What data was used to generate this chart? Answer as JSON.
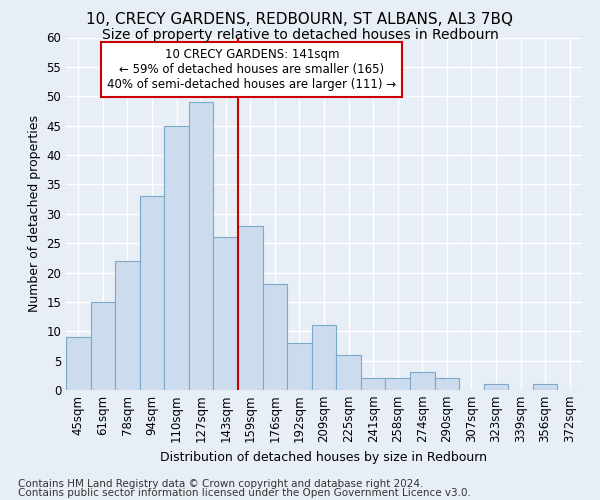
{
  "title": "10, CRECY GARDENS, REDBOURN, ST ALBANS, AL3 7BQ",
  "subtitle": "Size of property relative to detached houses in Redbourn",
  "xlabel": "Distribution of detached houses by size in Redbourn",
  "ylabel": "Number of detached properties",
  "bar_labels": [
    "45sqm",
    "61sqm",
    "78sqm",
    "94sqm",
    "110sqm",
    "127sqm",
    "143sqm",
    "159sqm",
    "176sqm",
    "192sqm",
    "209sqm",
    "225sqm",
    "241sqm",
    "258sqm",
    "274sqm",
    "290sqm",
    "307sqm",
    "323sqm",
    "339sqm",
    "356sqm",
    "372sqm"
  ],
  "bar_values": [
    9,
    15,
    22,
    33,
    45,
    49,
    26,
    28,
    18,
    8,
    11,
    6,
    2,
    2,
    3,
    2,
    0,
    1,
    0,
    1,
    0
  ],
  "bar_color": "#ccdcee",
  "bar_edge_color": "#7aaac8",
  "highlight_index": 6,
  "vline_color": "#cc0000",
  "ylim": [
    0,
    60
  ],
  "yticks": [
    0,
    5,
    10,
    15,
    20,
    25,
    30,
    35,
    40,
    45,
    50,
    55,
    60
  ],
  "background_color": "#e8eef6",
  "plot_bg_color": "#e8eef6",
  "annotation_text": "10 CRECY GARDENS: 141sqm\n← 59% of detached houses are smaller (165)\n40% of semi-detached houses are larger (111) →",
  "annotation_box_color": "white",
  "annotation_box_edge": "#cc0000",
  "footer_line1": "Contains HM Land Registry data © Crown copyright and database right 2024.",
  "footer_line2": "Contains public sector information licensed under the Open Government Licence v3.0.",
  "title_fontsize": 11,
  "subtitle_fontsize": 10,
  "xlabel_fontsize": 9,
  "ylabel_fontsize": 9,
  "tick_fontsize": 8.5,
  "annotation_fontsize": 8.5,
  "footer_fontsize": 7.5,
  "grid_color": "#ffffff",
  "grid_linewidth": 1.0
}
